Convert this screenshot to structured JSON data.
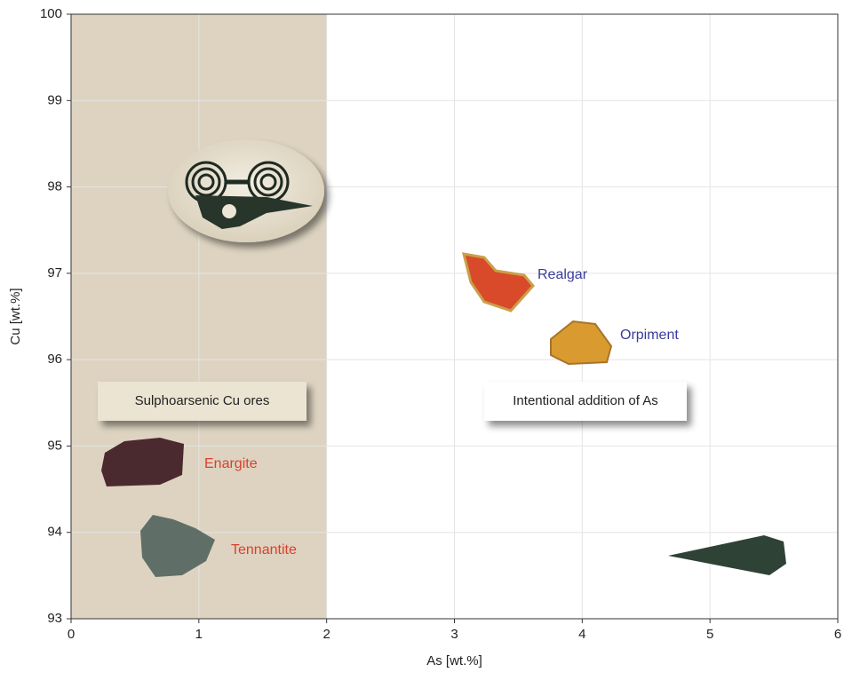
{
  "chart_data": {
    "type": "annotated-region",
    "x_label": "As [wt.%]",
    "y_label": "Cu [wt.%]",
    "xlim": [
      0,
      6
    ],
    "ylim": [
      93,
      100
    ],
    "xticks": [
      0,
      1,
      2,
      3,
      4,
      5,
      6
    ],
    "yticks": [
      93,
      94,
      95,
      96,
      97,
      98,
      99,
      100
    ],
    "grid": true,
    "region": {
      "xlim": [
        0,
        2
      ],
      "color": "#ddd3c0"
    },
    "boxes": [
      "Sulphoarsenic Cu ores",
      "Intentional addition of As"
    ],
    "annotations": [
      {
        "text": "Realgar",
        "color": "#3b3b9c"
      },
      {
        "text": "Orpiment",
        "color": "#3b3b9c"
      },
      {
        "text": "Enargite",
        "color": "#d9402e"
      },
      {
        "text": "Tennantite",
        "color": "#d9402e"
      }
    ]
  }
}
